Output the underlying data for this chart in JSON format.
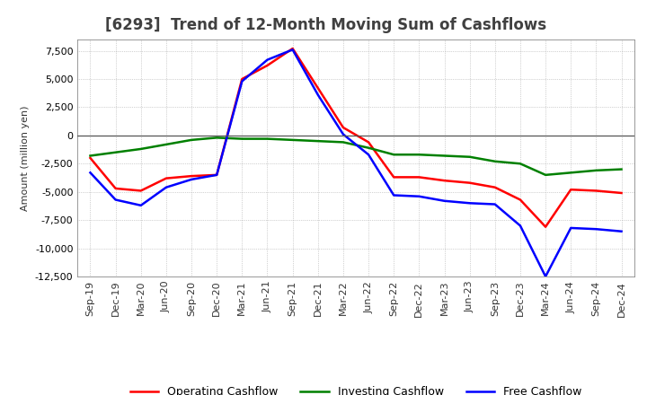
{
  "title": "[6293]  Trend of 12-Month Moving Sum of Cashflows",
  "ylabel": "Amount (million yen)",
  "x_labels": [
    "Sep-19",
    "Dec-19",
    "Mar-20",
    "Jun-20",
    "Sep-20",
    "Dec-20",
    "Mar-21",
    "Jun-21",
    "Sep-21",
    "Dec-21",
    "Mar-22",
    "Jun-22",
    "Sep-22",
    "Dec-22",
    "Mar-23",
    "Jun-23",
    "Sep-23",
    "Dec-23",
    "Mar-24",
    "Jun-24",
    "Sep-24",
    "Dec-24"
  ],
  "operating_cashflow": [
    -2000,
    -4700,
    -4900,
    -3800,
    -3600,
    -3500,
    5000,
    6200,
    7700,
    4200,
    700,
    -600,
    -3700,
    -3700,
    -4000,
    -4200,
    -4600,
    -5700,
    -8100,
    -4800,
    -4900,
    -5100
  ],
  "investing_cashflow": [
    -1800,
    -1500,
    -1200,
    -800,
    -400,
    -200,
    -300,
    -300,
    -400,
    -500,
    -600,
    -1100,
    -1700,
    -1700,
    -1800,
    -1900,
    -2300,
    -2500,
    -3500,
    -3300,
    -3100,
    -3000
  ],
  "free_cashflow": [
    -3300,
    -5700,
    -6200,
    -4600,
    -3900,
    -3500,
    4800,
    6700,
    7600,
    3600,
    100,
    -1700,
    -5300,
    -5400,
    -5800,
    -6000,
    -6100,
    -8000,
    -12500,
    -8200,
    -8300,
    -8500
  ],
  "operating_color": "#FF0000",
  "investing_color": "#008000",
  "free_color": "#0000FF",
  "ylim": [
    -12500,
    8500
  ],
  "yticks": [
    -12500,
    -10000,
    -7500,
    -5000,
    -2500,
    0,
    2500,
    5000,
    7500
  ],
  "bg_color": "#FFFFFF",
  "grid_color": "#AAAAAA",
  "title_color": "#404040",
  "title_fontsize": 12,
  "axis_fontsize": 8,
  "legend_fontsize": 9
}
